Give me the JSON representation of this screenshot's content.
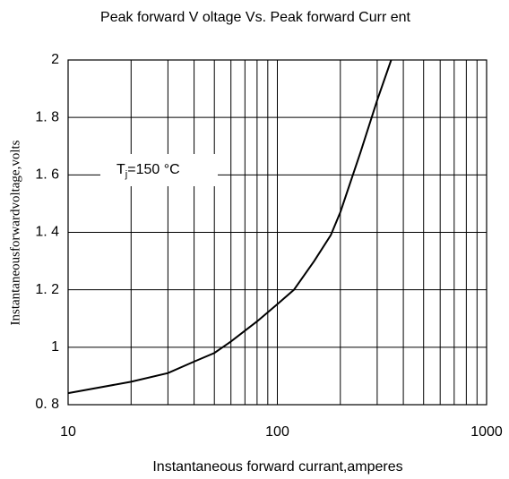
{
  "chart_data": {
    "type": "line",
    "title": "Peak forward V oltage  Vs. Peak forward Curr ent",
    "xlabel": "Instantaneous forward currant,amperes",
    "ylabel": "Instantaneousforwardvoltage,volts",
    "annotation": {
      "base": "T",
      "subscript": "j",
      "text": "=150 °C"
    },
    "x": [
      10,
      20,
      30,
      40,
      50,
      60,
      80,
      100,
      120,
      150,
      180,
      200,
      250,
      300,
      350
    ],
    "series": [
      {
        "color": "#000000",
        "values": [
          0.84,
          0.88,
          0.91,
          0.95,
          0.98,
          1.02,
          1.09,
          1.15,
          1.2,
          1.3,
          1.39,
          1.47,
          1.68,
          1.86,
          2
        ]
      }
    ],
    "xlim": [
      10,
      1000
    ],
    "xscale": "log",
    "xticks": [
      10,
      100,
      1000
    ],
    "x_minor_grid": [
      20,
      30,
      40,
      50,
      60,
      70,
      80,
      90,
      200,
      300,
      400,
      500,
      600,
      700,
      800,
      900
    ],
    "ylim": [
      0.8,
      2
    ],
    "yticks": [
      {
        "value": 0.8,
        "label": "0. 8"
      },
      1,
      {
        "value": 1.2,
        "label": "1. 2"
      },
      {
        "value": 1.4,
        "label": "1. 4"
      },
      {
        "value": 1.6,
        "label": "1. 6"
      },
      {
        "value": 1.8,
        "label": "1. 8"
      },
      2
    ],
    "grid": true
  }
}
